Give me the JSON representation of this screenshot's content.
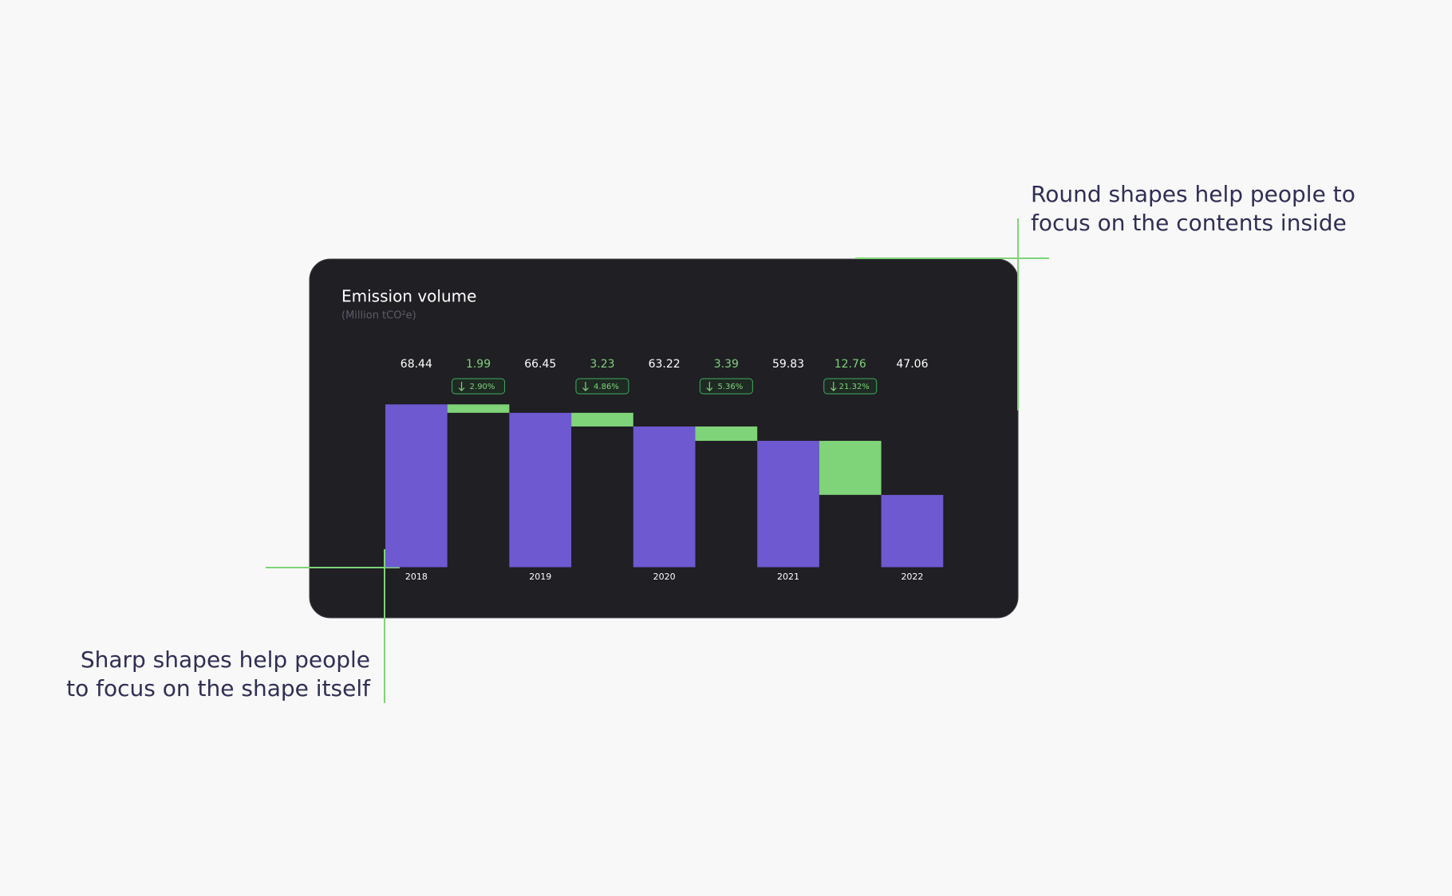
{
  "chart_data": {
    "type": "waterfall",
    "title": "Emission volume",
    "subtitle": "(Million tCO²e)",
    "categories": [
      "2018",
      "2019",
      "2020",
      "2021",
      "2022"
    ],
    "values": [
      68.44,
      66.45,
      63.22,
      59.83,
      47.06
    ],
    "decreases": [
      1.99,
      3.23,
      3.39,
      12.76
    ],
    "decrease_labels": [
      "2.90%",
      "4.86%",
      "5.36%",
      "21.32%"
    ],
    "color": "#6e59d1",
    "decrease_color": "#7fd378",
    "ylim": [
      30,
      70
    ]
  },
  "annotations": [
    {
      "lines": [
        "Round shapes help people to",
        "focus on the contents inside"
      ]
    },
    {
      "lines": [
        "Sharp shapes help people",
        "to focus on the shape itself"
      ]
    }
  ]
}
